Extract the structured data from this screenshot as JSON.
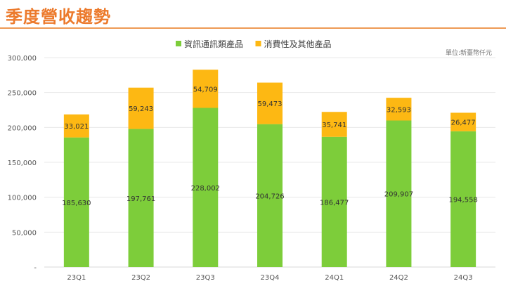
{
  "title": "季度營收趨勢",
  "unit": "單位:新臺幣仟元",
  "chart_data": {
    "type": "bar",
    "stacked": true,
    "categories": [
      "23Q1",
      "23Q2",
      "23Q3",
      "23Q4",
      "24Q1",
      "24Q2",
      "24Q3"
    ],
    "series": [
      {
        "name": "資訊通訊類產品",
        "color": "#7DCD3A",
        "values": [
          185630,
          197761,
          228002,
          204726,
          186477,
          209907,
          194558
        ]
      },
      {
        "name": "消費性及其他產品",
        "color": "#FDB813",
        "values": [
          33021,
          59243,
          54709,
          59473,
          35741,
          32593,
          26477
        ]
      }
    ],
    "ylim": [
      0,
      300000
    ],
    "yticks": [
      0,
      50000,
      100000,
      150000,
      200000,
      250000,
      300000
    ],
    "ytick_labels": [
      "-",
      "50,000",
      "100,000",
      "150,000",
      "200,000",
      "250,000",
      "300,000"
    ],
    "legend": "top-center",
    "grid": true
  }
}
